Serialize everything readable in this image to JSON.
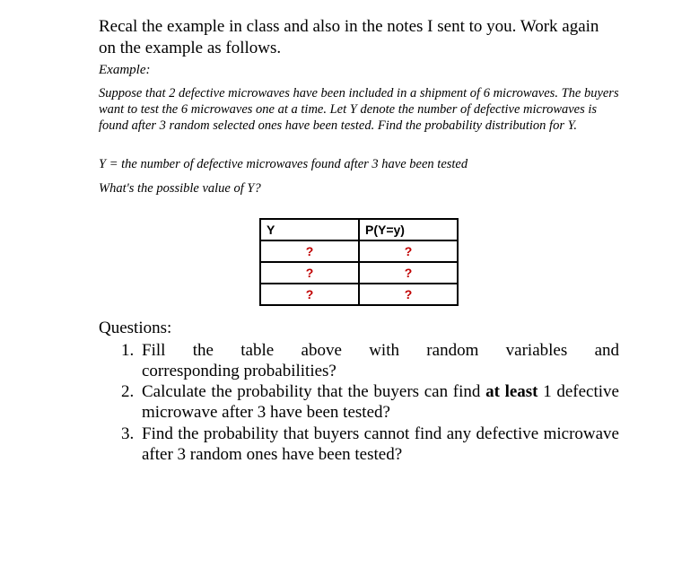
{
  "intro": "Recal the example in class and also in the notes I sent to you. Work again on the example as follows.",
  "example_label": "Example:",
  "problem": "Suppose that 2 defective microwaves have been included in a shipment of 6 microwaves. The buyers want to test the 6 microwaves one at a time. Let Y denote the number of defective microwaves is found after 3 random selected ones have been tested. Find the probability distribution for Y.",
  "y_def": "Y = the number of defective microwaves found after 3 have been tested",
  "y_q": "What's the possible value of Y?",
  "table": {
    "header_y": "Y",
    "header_p": "P(Y=y)",
    "rows": [
      {
        "y": "?",
        "p": "?"
      },
      {
        "y": "?",
        "p": "?"
      },
      {
        "y": "?",
        "p": "?"
      }
    ],
    "cell_color": "#c00000",
    "border_color": "#000000"
  },
  "questions_heading": "Questions:",
  "q1_a": "Fill the table above with random variables and",
  "q1_b": "corresponding probabilities?",
  "q2_a": "Calculate the probability that the buyers can find ",
  "q2_bold": "at least",
  "q2_b": " 1 defective microwave after 3 have been tested?",
  "q3": "Find the probability that buyers cannot find any defective microwave after 3 random ones have been tested?",
  "colors": {
    "background": "#ffffff",
    "text": "#000000",
    "unknown_mark": "#c00000"
  },
  "fonts": {
    "body": "Times New Roman",
    "table": "Arial",
    "body_size_pt": 14,
    "italic_size_pt": 11,
    "table_size_pt": 11
  }
}
